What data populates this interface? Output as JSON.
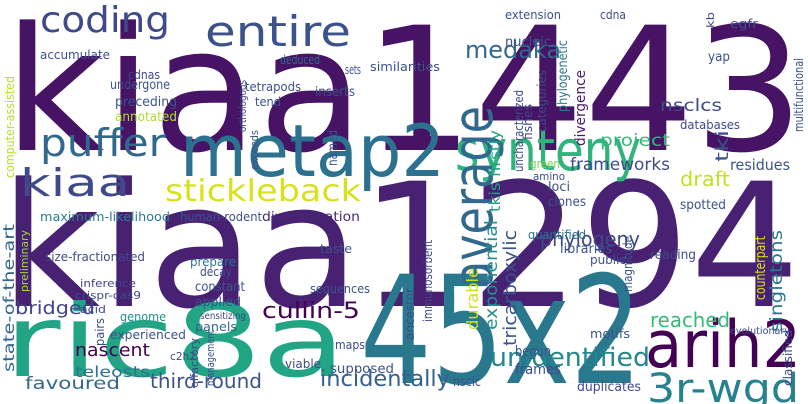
{
  "words": [
    "kiaa1443",
    "kiaa1294",
    "45x2",
    "ric8a",
    "metap2",
    "synteny",
    "average",
    "arih2",
    "3r-wgd",
    "entire",
    "coding",
    "puffer",
    "kiaa",
    "stickleback",
    "medaka",
    "unidentified",
    "incidentally",
    "third-round",
    "cullin-5",
    "nascent",
    "bridged",
    "favoured",
    "teleosts",
    "state-of-the-art",
    "phylogeny",
    "reached",
    "singletons",
    "tricarboxylic",
    "exponential",
    "durable",
    "frameworks",
    "project",
    "draft",
    "tkis firstly",
    "nsclcs",
    "tki",
    "divergence",
    "maximum-likelihood",
    "human-rodent",
    "diversification",
    "size-fractionated",
    "inference",
    "crispr-cas9",
    "acid",
    "genome",
    "experienced",
    "decay",
    "constant",
    "applied",
    "panels",
    "prepare",
    "sequences",
    "ancestor",
    "immunosorbent",
    "taste",
    "maps",
    "supposed",
    "viable",
    "c2h2",
    "management",
    "olfactory",
    "pairs",
    "nsclc",
    "frames",
    "begun",
    "motifs",
    "duplicates",
    "loci",
    "clones",
    "quantified",
    "libraries",
    "public",
    "reading",
    "spotted",
    "residues",
    "classified",
    "evolutionary",
    "multifunctional",
    "databases",
    "yap",
    "egfr",
    "kb",
    "nucleic",
    "extension",
    "cdna",
    "phylogenetic",
    "uncharacterized",
    "categories",
    "green",
    "amino",
    "named",
    "tend",
    "tetrapods",
    "inserts",
    "sets",
    "similarities",
    "deduced",
    "cdnas",
    "undergone",
    "preceding",
    "annotated",
    "accumulate",
    "orthologous",
    "exceeds",
    "computer-assisted",
    "preliminary",
    "sensitizing",
    "magnitude",
    "counterpart",
    "fishes"
  ]
}
